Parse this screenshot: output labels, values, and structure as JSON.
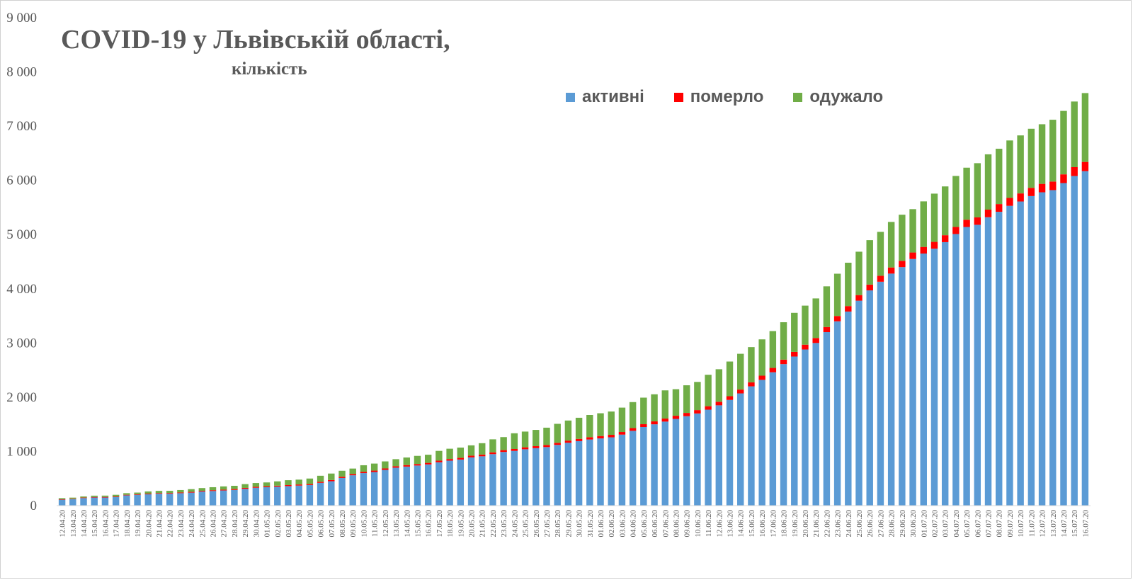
{
  "colors": {
    "active": "#5B9BD5",
    "deaths": "#FF0000",
    "recovered": "#70AD47"
  },
  "chart_data": {
    "type": "bar",
    "stacked": true,
    "title": "COVID-19 у Львівській області,",
    "subtitle": "кількість",
    "legend_position": "top-right",
    "ylim": [
      0,
      9000
    ],
    "yticks": [
      "0",
      "1 000",
      "2 000",
      "3 000",
      "4 000",
      "5 000",
      "6 000",
      "7 000",
      "8 000",
      "9 000"
    ],
    "grid": false,
    "categories": [
      "12.04.20",
      "13.04.20",
      "14.04.20",
      "15.04.20",
      "16.04.20",
      "17.04.20",
      "18.04.20",
      "19.04.20",
      "20.04.20",
      "21.04.20",
      "22.04.20",
      "23.04.20",
      "24.04.20",
      "25.04.20",
      "26.04.20",
      "27.04.20",
      "28.04.20",
      "29.04.20",
      "30.04.20",
      "01.05.20",
      "02.05.20",
      "03.05.20",
      "04.05.20",
      "05.05.20",
      "06.05.20",
      "07.05.20",
      "08.05.20",
      "09.05.20",
      "10.05.20",
      "11.05.20",
      "12.05.20",
      "13.05.20",
      "14.05.20",
      "15.05.20",
      "16.05.20",
      "17.05.20",
      "18.05.20",
      "19.05.20",
      "20.05.20",
      "21.05.20",
      "22.05.20",
      "23.05.20",
      "24.05.20",
      "25.05.20",
      "26.05.20",
      "27.05.20",
      "28.05.20",
      "29.05.20",
      "30.05.20",
      "31.05.20",
      "01.06.20",
      "02.06.20",
      "03.06.20",
      "04.06.20",
      "05.06.20",
      "06.06.20",
      "07.06.20",
      "08.06.20",
      "09.06.20",
      "10.06.20",
      "11.06.20",
      "12.06.20",
      "13.06.20",
      "14.06.20",
      "15.06.20",
      "16.06.20",
      "17.06.20",
      "18.06.20",
      "19.06.20",
      "20.06.20",
      "21.06.20",
      "22.06.20",
      "23.06.20",
      "24.06.20",
      "25.06.20",
      "26.06.20",
      "27.06.20",
      "28.06.20",
      "29.06.20",
      "30.06.20",
      "01.07.20",
      "02.07.20",
      "03.07.20",
      "04.07.20",
      "05.07.20",
      "06.07.20",
      "07.07.20",
      "08.07.20",
      "09.07.20",
      "10.07.20",
      "11.07.20",
      "12.07.20",
      "13.07.20",
      "14.07.20",
      "15.07.20",
      "16.07.20"
    ],
    "series": [
      {
        "name": "активні",
        "color_key": "active",
        "values": [
          110,
          120,
          140,
          150,
          150,
          160,
          190,
          200,
          210,
          220,
          220,
          230,
          240,
          260,
          270,
          280,
          290,
          310,
          330,
          340,
          350,
          360,
          370,
          380,
          420,
          450,
          510,
          560,
          600,
          620,
          660,
          700,
          720,
          740,
          760,
          800,
          830,
          850,
          890,
          910,
          950,
          990,
          1010,
          1040,
          1060,
          1080,
          1120,
          1160,
          1190,
          1220,
          1240,
          1260,
          1310,
          1380,
          1450,
          1500,
          1550,
          1600,
          1650,
          1700,
          1770,
          1850,
          1950,
          2070,
          2200,
          2320,
          2460,
          2610,
          2750,
          2880,
          3000,
          3200,
          3400,
          3580,
          3780,
          3970,
          4130,
          4280,
          4400,
          4550,
          4650,
          4740,
          4860,
          5010,
          5140,
          5180,
          5320,
          5420,
          5530,
          5610,
          5710,
          5780,
          5820,
          5950,
          6080,
          6170
        ]
      },
      {
        "name": "померло",
        "color_key": "deaths",
        "values": [
          8,
          8,
          9,
          9,
          10,
          10,
          10,
          11,
          12,
          12,
          13,
          13,
          14,
          14,
          15,
          15,
          16,
          17,
          17,
          18,
          18,
          19,
          20,
          20,
          21,
          22,
          23,
          24,
          25,
          26,
          26,
          27,
          28,
          28,
          29,
          30,
          30,
          31,
          32,
          32,
          33,
          34,
          35,
          36,
          37,
          38,
          39,
          40,
          41,
          42,
          44,
          46,
          48,
          50,
          52,
          54,
          56,
          58,
          60,
          62,
          64,
          66,
          68,
          71,
          74,
          77,
          80,
          83,
          86,
          89,
          92,
          95,
          98,
          101,
          104,
          107,
          110,
          113,
          116,
          119,
          122,
          125,
          128,
          131,
          134,
          137,
          140,
          143,
          146,
          149,
          152,
          155,
          158,
          161,
          164,
          170
        ]
      },
      {
        "name": "одужало",
        "color_key": "recovered",
        "values": [
          20,
          20,
          20,
          25,
          25,
          30,
          30,
          30,
          40,
          40,
          40,
          45,
          50,
          50,
          55,
          60,
          60,
          70,
          70,
          70,
          80,
          90,
          90,
          100,
          110,
          120,
          110,
          100,
          120,
          130,
          130,
          130,
          140,
          150,
          150,
          180,
          190,
          190,
          190,
          210,
          240,
          240,
          290,
          290,
          300,
          320,
          350,
          370,
          390,
          410,
          420,
          430,
          450,
          480,
          490,
          500,
          520,
          490,
          510,
          520,
          580,
          600,
          640,
          660,
          650,
          670,
          680,
          690,
          720,
          720,
          730,
          750,
          780,
          800,
          800,
          820,
          810,
          840,
          850,
          800,
          840,
          890,
          900,
          940,
          960,
          1000,
          1020,
          1020,
          1060,
          1070,
          1090,
          1100,
          1140,
          1170,
          1210,
          1270
        ]
      }
    ]
  }
}
